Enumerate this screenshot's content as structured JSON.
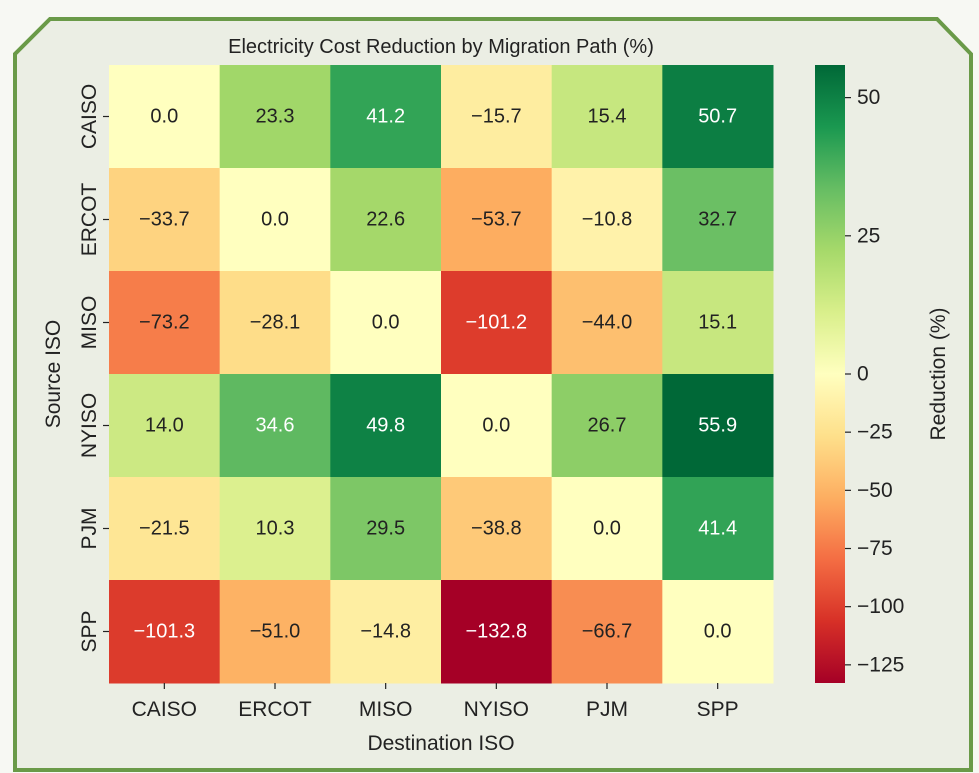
{
  "chart_data": {
    "type": "heatmap",
    "title": "Electricity Cost Reduction by Migration Path (%)",
    "xlabel": "Destination ISO",
    "ylabel": "Source ISO",
    "x_categories": [
      "CAISO",
      "ERCOT",
      "MISO",
      "NYISO",
      "PJM",
      "SPP"
    ],
    "y_categories": [
      "CAISO",
      "ERCOT",
      "MISO",
      "NYISO",
      "PJM",
      "SPP"
    ],
    "values": [
      [
        0.0,
        23.3,
        41.2,
        -15.7,
        15.4,
        50.7
      ],
      [
        -33.7,
        0.0,
        22.6,
        -53.7,
        -10.8,
        32.7
      ],
      [
        -73.2,
        -28.1,
        0.0,
        -101.2,
        -44.0,
        15.1
      ],
      [
        14.0,
        34.6,
        49.8,
        0.0,
        26.7,
        55.9
      ],
      [
        -21.5,
        10.3,
        29.5,
        -38.8,
        0.0,
        41.4
      ],
      [
        -101.3,
        -51.0,
        -14.8,
        -132.8,
        -66.7,
        0.0
      ]
    ],
    "value_format": "1 decimal, minus shown as en dash",
    "colormap": "RdYlGn (diverging, centered at 0)",
    "vmin": -132.8,
    "vcenter": 0,
    "vmax": 55.9,
    "colorbar": {
      "label": "Reduction (%)",
      "ticks": [
        50,
        25,
        0,
        -25,
        -50,
        -75,
        -100,
        -125
      ],
      "tick_labels": [
        "50",
        "25",
        "0",
        "−25",
        "−50",
        "−75",
        "−100",
        "−125"
      ],
      "placement": "right"
    }
  },
  "theme": {
    "frame_border": "#6a9a48",
    "frame_fill": "#ebeee4",
    "page_bg": "#f7f8f3",
    "text_dark": "#222222",
    "text_light": "#ffffff"
  }
}
